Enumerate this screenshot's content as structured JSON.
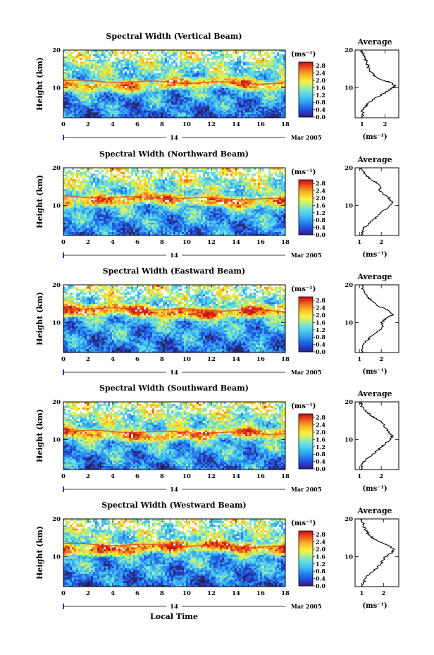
{
  "figure": {
    "xlabel": "Local Time",
    "day_label": "14",
    "date_label": "Mar 2005",
    "ylabel": "Height (km)",
    "unit": "(ms⁻¹)",
    "avg_title": "Average",
    "avg_xlabel": "(ms⁻¹)"
  },
  "chart_data": [
    {
      "type": "heatmap",
      "title": "Spectral Width (Vertical Beam)",
      "beam": "vertical",
      "xlim": [
        0,
        18
      ],
      "xticks": [
        0,
        2,
        4,
        6,
        8,
        10,
        12,
        14,
        16,
        18
      ],
      "ylim": [
        2,
        20
      ],
      "yticks": [
        10,
        20
      ],
      "colorbar": {
        "min": 0.0,
        "max": 3.0,
        "ticks": [
          "2.8",
          "2.4",
          "2.0",
          "1.6",
          "1.2",
          "0.8",
          "0.4",
          "0.0"
        ]
      },
      "height_profile": {
        "peak_km": 11.0,
        "peak_value": 2.3,
        "low_value": 0.5,
        "top_value": 1.2
      },
      "average_profile": {
        "xlim": [
          0.7,
          2.6
        ],
        "xticks": [
          "1",
          "2"
        ],
        "heights": [
          2,
          3,
          4,
          5,
          6,
          7,
          8,
          9,
          10,
          10.5,
          11,
          11.5,
          12,
          13,
          14,
          15,
          16,
          17,
          18,
          19,
          20
        ],
        "values": [
          1.0,
          1.05,
          1.0,
          1.15,
          1.3,
          1.5,
          1.8,
          2.1,
          2.35,
          2.45,
          2.35,
          2.2,
          1.9,
          1.55,
          1.4,
          1.3,
          1.25,
          1.2,
          1.1,
          1.05,
          0.95
        ]
      }
    },
    {
      "type": "heatmap",
      "title": "Spectral Width (Northward Beam)",
      "beam": "northward",
      "xlim": [
        0,
        18
      ],
      "xticks": [
        0,
        2,
        4,
        6,
        8,
        10,
        12,
        14,
        16,
        18
      ],
      "ylim": [
        2,
        20
      ],
      "yticks": [
        10,
        20
      ],
      "colorbar": {
        "min": 0.0,
        "max": 3.0,
        "ticks": [
          "2.8",
          "2.4",
          "2.0",
          "1.6",
          "1.2",
          "0.8",
          "0.4",
          "0.0"
        ]
      },
      "height_profile": {
        "peak_km": 11.5,
        "peak_value": 2.4,
        "low_value": 0.6,
        "top_value": 1.4
      },
      "average_profile": {
        "xlim": [
          0.8,
          2.8
        ],
        "xticks": [
          "1",
          "2"
        ],
        "heights": [
          2,
          3,
          4,
          5,
          6,
          7,
          8,
          9,
          10,
          11,
          12,
          13,
          14,
          15,
          16,
          17,
          18,
          19,
          20
        ],
        "values": [
          1.1,
          1.15,
          1.2,
          1.4,
          1.6,
          1.8,
          2.0,
          2.2,
          2.4,
          2.5,
          2.35,
          2.1,
          1.9,
          2.0,
          1.8,
          1.5,
          1.3,
          1.15,
          1.05
        ]
      }
    },
    {
      "type": "heatmap",
      "title": "Spectral Width (Eastward Beam)",
      "beam": "eastward",
      "xlim": [
        0,
        18
      ],
      "xticks": [
        0,
        2,
        4,
        6,
        8,
        10,
        12,
        14,
        16,
        18
      ],
      "ylim": [
        2,
        20
      ],
      "yticks": [
        10,
        20
      ],
      "colorbar": {
        "min": 0.0,
        "max": 3.0,
        "ticks": [
          "2.8",
          "2.4",
          "2.0",
          "1.6",
          "1.2",
          "0.8",
          "0.4",
          "0.0"
        ]
      },
      "height_profile": {
        "peak_km": 13.0,
        "peak_value": 2.6,
        "low_value": 0.5,
        "top_value": 1.3
      },
      "average_profile": {
        "xlim": [
          0.8,
          2.8
        ],
        "xticks": [
          "1",
          "2"
        ],
        "heights": [
          2,
          3,
          4,
          5,
          6,
          7,
          8,
          9,
          10,
          11,
          12,
          13,
          14,
          15,
          16,
          17,
          18,
          19,
          20
        ],
        "values": [
          1.1,
          1.15,
          1.2,
          1.3,
          1.5,
          1.7,
          1.9,
          2.1,
          2.0,
          2.2,
          2.5,
          2.4,
          2.0,
          1.7,
          1.5,
          1.35,
          1.25,
          1.15,
          1.1
        ]
      }
    },
    {
      "type": "heatmap",
      "title": "Spectral Width (Southward Beam)",
      "beam": "southward",
      "xlim": [
        0,
        18
      ],
      "xticks": [
        0,
        2,
        4,
        6,
        8,
        10,
        12,
        14,
        16,
        18
      ],
      "ylim": [
        2,
        20
      ],
      "yticks": [
        10,
        20
      ],
      "colorbar": {
        "min": 0.0,
        "max": 3.0,
        "ticks": [
          "2.8",
          "2.4",
          "2.0",
          "1.6",
          "1.2",
          "0.8",
          "0.4",
          "0.0"
        ]
      },
      "height_profile": {
        "peak_km": 11.5,
        "peak_value": 2.4,
        "low_value": 0.6,
        "top_value": 1.3
      },
      "average_profile": {
        "xlim": [
          0.8,
          2.8
        ],
        "xticks": [
          "1",
          "2"
        ],
        "heights": [
          2,
          3,
          4,
          5,
          6,
          7,
          8,
          9,
          10,
          11,
          12,
          13,
          14,
          15,
          16,
          17,
          18,
          19,
          20
        ],
        "values": [
          1.1,
          1.1,
          1.2,
          1.35,
          1.6,
          1.8,
          2.0,
          2.2,
          2.4,
          2.5,
          2.35,
          2.2,
          2.1,
          1.95,
          1.6,
          1.4,
          1.2,
          1.1,
          1.05
        ]
      }
    },
    {
      "type": "heatmap",
      "title": "Spectral Width (Westward Beam)",
      "beam": "westward",
      "xlim": [
        0,
        18
      ],
      "xticks": [
        0,
        2,
        4,
        6,
        8,
        10,
        12,
        14,
        16,
        18
      ],
      "ylim": [
        2,
        20
      ],
      "yticks": [
        10,
        20
      ],
      "colorbar": {
        "min": 0.0,
        "max": 3.0,
        "ticks": [
          "2.8",
          "2.4",
          "2.0",
          "1.6",
          "1.2",
          "0.8",
          "0.4",
          "0.0"
        ]
      },
      "height_profile": {
        "peak_km": 12.5,
        "peak_value": 2.6,
        "low_value": 0.5,
        "top_value": 1.2
      },
      "average_profile": {
        "xlim": [
          0.7,
          2.7
        ],
        "xticks": [
          "1",
          "2"
        ],
        "heights": [
          2,
          3,
          4,
          5,
          6,
          7,
          8,
          9,
          10,
          11,
          12,
          13,
          14,
          15,
          16,
          17,
          18,
          19,
          20
        ],
        "values": [
          1.05,
          1.1,
          1.15,
          1.3,
          1.5,
          1.7,
          1.85,
          2.0,
          2.1,
          2.4,
          2.45,
          2.2,
          1.8,
          1.5,
          1.3,
          1.2,
          1.1,
          1.05,
          0.95
        ]
      }
    }
  ]
}
